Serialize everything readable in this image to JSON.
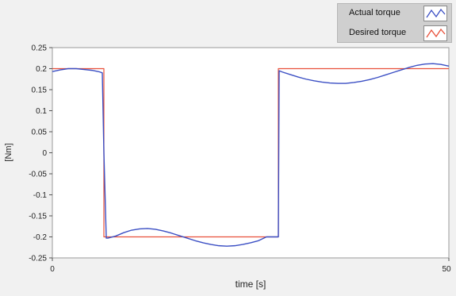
{
  "chart_data": {
    "type": "line",
    "title": "",
    "xlabel": "time [s]",
    "ylabel": "[Nm]",
    "xlim": [
      0,
      50
    ],
    "ylim": [
      -0.25,
      0.25
    ],
    "xticks": [
      "0",
      "50"
    ],
    "yticks": [
      "0.25",
      "0.2",
      "0.15",
      "0.1",
      "0.05",
      "0",
      "-0.05",
      "-0.1",
      "-0.15",
      "-0.2",
      "-0.25"
    ],
    "legend_position": "top-right",
    "grid": false,
    "series": [
      {
        "name": "Actual torque",
        "color": "#3b4fc4",
        "x": [
          0,
          1,
          2,
          3,
          4,
          5,
          6,
          6.3,
          6.5,
          6.8,
          7,
          8,
          9,
          10,
          11,
          12,
          13,
          14,
          15,
          16,
          17,
          18,
          19,
          20,
          21,
          22,
          23,
          24,
          25,
          26,
          27,
          28.5,
          28.6,
          29,
          30,
          31,
          32,
          33,
          34,
          35,
          36,
          37,
          38,
          39,
          40,
          41,
          42,
          43,
          44,
          45,
          46,
          47,
          48,
          49,
          50
        ],
        "y": [
          0.193,
          0.197,
          0.2,
          0.2,
          0.198,
          0.196,
          0.192,
          0.19,
          0.0,
          -0.203,
          -0.203,
          -0.198,
          -0.19,
          -0.184,
          -0.181,
          -0.18,
          -0.182,
          -0.186,
          -0.191,
          -0.197,
          -0.203,
          -0.209,
          -0.214,
          -0.218,
          -0.221,
          -0.222,
          -0.221,
          -0.218,
          -0.214,
          -0.209,
          -0.2,
          -0.2,
          0.195,
          0.192,
          0.186,
          0.18,
          0.175,
          0.171,
          0.168,
          0.166,
          0.165,
          0.165,
          0.167,
          0.17,
          0.174,
          0.179,
          0.185,
          0.191,
          0.197,
          0.203,
          0.208,
          0.211,
          0.212,
          0.21,
          0.206
        ]
      },
      {
        "name": "Desired torque",
        "color": "#e8503a",
        "x": [
          0,
          6.5,
          6.5,
          28.5,
          28.5,
          50
        ],
        "y": [
          0.2,
          0.2,
          -0.2,
          -0.2,
          0.2,
          0.2
        ]
      }
    ]
  }
}
